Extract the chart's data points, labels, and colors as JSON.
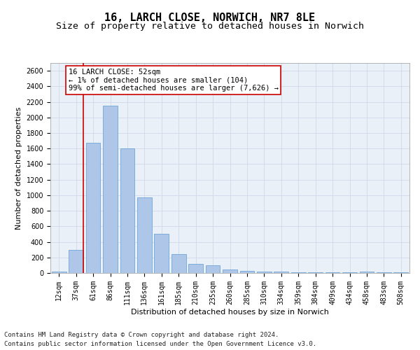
{
  "title": "16, LARCH CLOSE, NORWICH, NR7 8LE",
  "subtitle": "Size of property relative to detached houses in Norwich",
  "xlabel": "Distribution of detached houses by size in Norwich",
  "ylabel": "Number of detached properties",
  "categories": [
    "12sqm",
    "37sqm",
    "61sqm",
    "86sqm",
    "111sqm",
    "136sqm",
    "161sqm",
    "185sqm",
    "210sqm",
    "235sqm",
    "260sqm",
    "285sqm",
    "310sqm",
    "334sqm",
    "359sqm",
    "384sqm",
    "409sqm",
    "434sqm",
    "458sqm",
    "483sqm",
    "508sqm"
  ],
  "values": [
    20,
    300,
    1670,
    2150,
    1600,
    970,
    500,
    245,
    120,
    100,
    45,
    30,
    20,
    15,
    10,
    10,
    8,
    5,
    20,
    5,
    5
  ],
  "bar_color": "#aec6e8",
  "bar_edge_color": "#5b9bd5",
  "vline_color": "#cc0000",
  "vline_xindex": 1.425,
  "annotation_text": "16 LARCH CLOSE: 52sqm\n← 1% of detached houses are smaller (104)\n99% of semi-detached houses are larger (7,626) →",
  "annotation_box_color": "#ffffff",
  "annotation_box_edgecolor": "#cc0000",
  "ylim": [
    0,
    2700
  ],
  "yticks": [
    0,
    200,
    400,
    600,
    800,
    1000,
    1200,
    1400,
    1600,
    1800,
    2000,
    2200,
    2400,
    2600
  ],
  "grid_color": "#d0d8e8",
  "background_color": "#eaf0f8",
  "footer_line1": "Contains HM Land Registry data © Crown copyright and database right 2024.",
  "footer_line2": "Contains public sector information licensed under the Open Government Licence v3.0.",
  "title_fontsize": 11,
  "subtitle_fontsize": 9.5,
  "label_fontsize": 8,
  "tick_fontsize": 7,
  "annotation_fontsize": 7.5,
  "footer_fontsize": 6.5
}
